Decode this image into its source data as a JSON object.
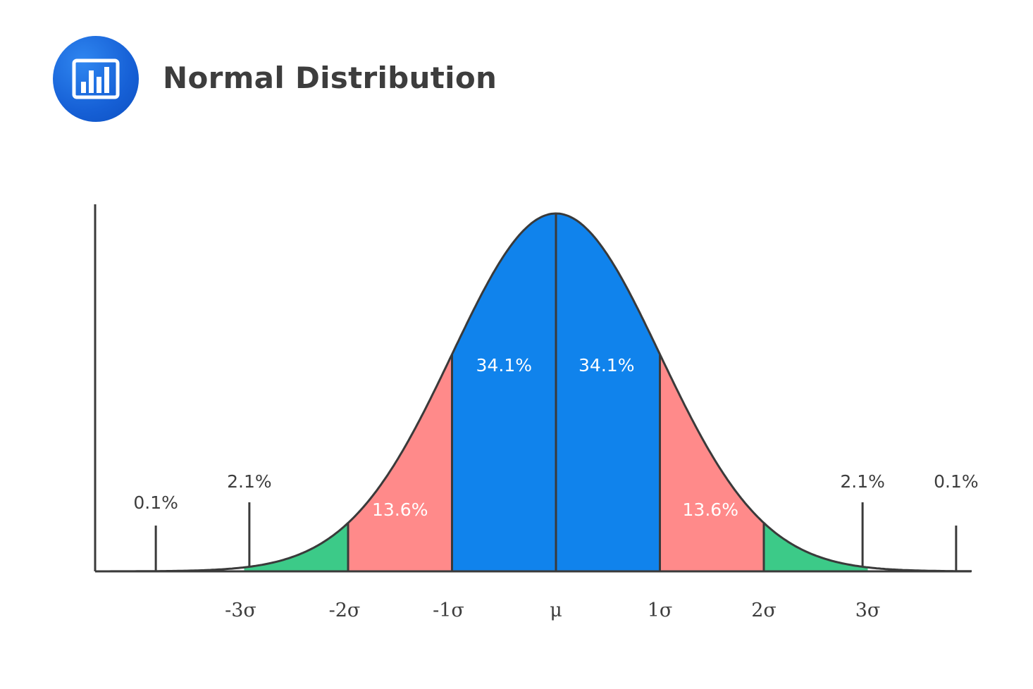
{
  "header": {
    "title": "Normal Distribution",
    "icon": "bar-chart-icon",
    "icon_color": "#1a6ee0"
  },
  "colors": {
    "center_band": "#1083ec",
    "second_band": "#ff8a8a",
    "third_band": "#3cca88",
    "curve": "#3a3a3a",
    "axis": "#3a3a3a",
    "inner_label": "#ffffff",
    "outer_label": "#3d3d3d"
  },
  "chart_data": {
    "type": "area",
    "title": "Normal Distribution",
    "x_ticks": [
      {
        "z": -3,
        "label": "-3σ"
      },
      {
        "z": -2,
        "label": "-2σ"
      },
      {
        "z": -1,
        "label": "-1σ"
      },
      {
        "z": 0,
        "label": "μ"
      },
      {
        "z": 1,
        "label": "1σ"
      },
      {
        "z": 2,
        "label": "2σ"
      },
      {
        "z": 3,
        "label": "3σ"
      }
    ],
    "regions": [
      {
        "from": -2,
        "to": -1,
        "label": "13.6%",
        "band": "second"
      },
      {
        "from": -1,
        "to": 0,
        "label": "34.1%",
        "band": "center"
      },
      {
        "from": 0,
        "to": 1,
        "label": "34.1%",
        "band": "center"
      },
      {
        "from": 1,
        "to": 2,
        "label": "13.6%",
        "band": "second"
      },
      {
        "from": -3,
        "to": -2,
        "label": "",
        "band": "third"
      },
      {
        "from": 2,
        "to": 3,
        "label": "",
        "band": "third"
      }
    ],
    "tail_annotations": [
      {
        "z": -3.85,
        "label": "0.1%"
      },
      {
        "z": -2.95,
        "label": "2.1%"
      },
      {
        "z": 2.95,
        "label": "2.1%"
      },
      {
        "z": 3.85,
        "label": "0.1%"
      }
    ],
    "xlim": [
      -4.3,
      4.0
    ],
    "grid": false,
    "legend": "none"
  }
}
